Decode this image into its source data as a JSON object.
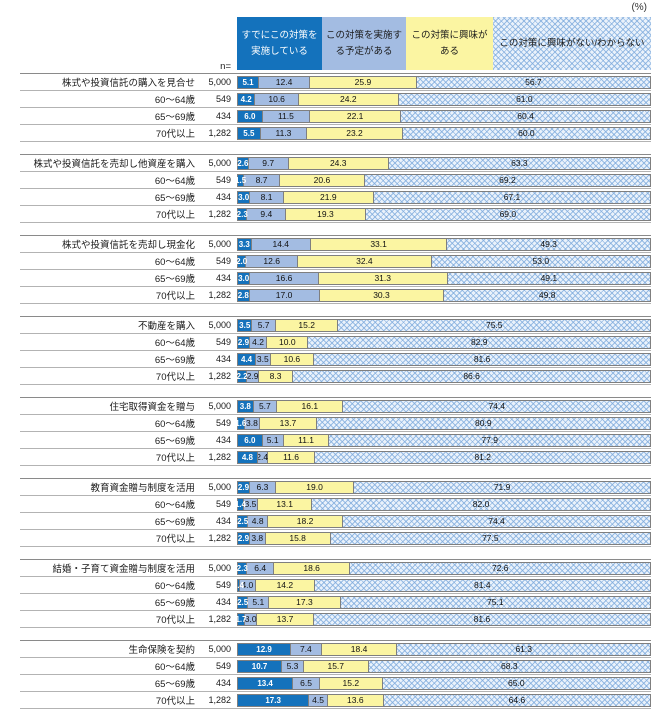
{
  "header": {
    "percent_label": "(%)",
    "n_label": "n="
  },
  "legend": [
    {
      "label": "すでにこの対策を実施している",
      "color": "#1472BC",
      "text_color": "#ffffff"
    },
    {
      "label": "この対策を実施する予定がある",
      "color": "#A3BCE2",
      "text_color": "#1a1a1a"
    },
    {
      "label": "この対策に興味がある",
      "color": "#FBF5A2",
      "text_color": "#1a1a1a"
    },
    {
      "label": "この対策に興味がない/わからない",
      "pattern": true,
      "color": "#EAF2FB",
      "text_color": "#1a1a1a"
    }
  ],
  "chart_data": {
    "type": "bar",
    "orientation": "horizontal-stacked",
    "unit": "%",
    "axis_range": [
      0,
      100
    ],
    "colors": {
      "implemented": "#1472BC",
      "planned": "#A3BCE2",
      "interested": "#FBF5A2",
      "not_interested_bg": "#EAF2FB"
    },
    "stack_order": [
      "すでにこの対策を実施している",
      "この対策を実施する予定がある",
      "この対策に興味がある",
      "この対策に興味がない/わからない"
    ],
    "blocks": [
      {
        "category": "株式や投資信託の購入を見合せ",
        "rows": [
          {
            "label": "",
            "n": "5,000",
            "values": [
              "5.1",
              "12.4",
              "25.9",
              "56.7"
            ]
          },
          {
            "label": "60～64歳",
            "n": "549",
            "values": [
              "4.2",
              "10.6",
              "24.2",
              "61.0"
            ]
          },
          {
            "label": "65～69歳",
            "n": "434",
            "values": [
              "6.0",
              "11.5",
              "22.1",
              "60.4"
            ]
          },
          {
            "label": "70代以上",
            "n": "1,282",
            "values": [
              "5.5",
              "11.3",
              "23.2",
              "60.0"
            ]
          }
        ]
      },
      {
        "category": "株式や投資信託を売却し他資産を購入",
        "rows": [
          {
            "label": "",
            "n": "5,000",
            "values": [
              "2.6",
              "9.7",
              "24.3",
              "63.3"
            ]
          },
          {
            "label": "60～64歳",
            "n": "549",
            "values": [
              "1.5",
              "8.7",
              "20.6",
              "69.2"
            ]
          },
          {
            "label": "65～69歳",
            "n": "434",
            "values": [
              "3.0",
              "8.1",
              "21.9",
              "67.1"
            ]
          },
          {
            "label": "70代以上",
            "n": "1,282",
            "values": [
              "2.3",
              "9.4",
              "19.3",
              "69.0"
            ]
          }
        ]
      },
      {
        "category": "株式や投資信託を売却し現金化",
        "rows": [
          {
            "label": "",
            "n": "5,000",
            "values": [
              "3.3",
              "14.4",
              "33.1",
              "49.3"
            ]
          },
          {
            "label": "60～64歳",
            "n": "549",
            "values": [
              "2.0",
              "12.6",
              "32.4",
              "53.0"
            ]
          },
          {
            "label": "65～69歳",
            "n": "434",
            "values": [
              "3.0",
              "16.6",
              "31.3",
              "49.1"
            ]
          },
          {
            "label": "70代以上",
            "n": "1,282",
            "values": [
              "2.8",
              "17.0",
              "30.3",
              "49.8"
            ]
          }
        ]
      },
      {
        "category": "不動産を購入",
        "rows": [
          {
            "label": "",
            "n": "5,000",
            "values": [
              "3.5",
              "5.7",
              "15.2",
              "75.5"
            ]
          },
          {
            "label": "60～64歳",
            "n": "549",
            "values": [
              "2.9",
              "4.2",
              "10.0",
              "82.9"
            ]
          },
          {
            "label": "65～69歳",
            "n": "434",
            "values": [
              "4.4",
              "3.5",
              "10.6",
              "81.6"
            ]
          },
          {
            "label": "70代以上",
            "n": "1,282",
            "values": [
              "2.2",
              "2.9",
              "8.3",
              "86.6"
            ]
          }
        ]
      },
      {
        "category": "住宅取得資金を贈与",
        "rows": [
          {
            "label": "",
            "n": "5,000",
            "values": [
              "3.8",
              "5.7",
              "16.1",
              "74.4"
            ]
          },
          {
            "label": "60～64歳",
            "n": "549",
            "values": [
              "1.6",
              "3.8",
              "13.7",
              "80.9"
            ]
          },
          {
            "label": "65～69歳",
            "n": "434",
            "values": [
              "6.0",
              "5.1",
              "11.1",
              "77.9"
            ]
          },
          {
            "label": "70代以上",
            "n": "1,282",
            "values": [
              "4.8",
              "2.4",
              "11.6",
              "81.2"
            ]
          }
        ]
      },
      {
        "category": "教育資金贈与制度を活用",
        "rows": [
          {
            "label": "",
            "n": "5,000",
            "values": [
              "2.9",
              "6.3",
              "19.0",
              "71.9"
            ]
          },
          {
            "label": "60～64歳",
            "n": "549",
            "values": [
              "1.4",
              "3.5",
              "13.1",
              "82.0"
            ]
          },
          {
            "label": "65～69歳",
            "n": "434",
            "values": [
              "2.5",
              "4.8",
              "18.2",
              "74.4"
            ]
          },
          {
            "label": "70代以上",
            "n": "1,282",
            "values": [
              "2.9",
              "3.8",
              "15.8",
              "77.5"
            ]
          }
        ]
      },
      {
        "category": "結婚・子育て資金贈与制度を活用",
        "rows": [
          {
            "label": "",
            "n": "5,000",
            "values": [
              "2.3",
              "6.4",
              "18.6",
              "72.6"
            ]
          },
          {
            "label": "60～64歳",
            "n": "549",
            "values": [
              "0.4",
              "4.0",
              "14.2",
              "81.4"
            ]
          },
          {
            "label": "65～69歳",
            "n": "434",
            "values": [
              "2.5",
              "5.1",
              "17.3",
              "75.1"
            ]
          },
          {
            "label": "70代以上",
            "n": "1,282",
            "values": [
              "1.7",
              "3.0",
              "13.7",
              "81.6"
            ]
          }
        ]
      },
      {
        "category": "生命保険を契約",
        "rows": [
          {
            "label": "",
            "n": "5,000",
            "values": [
              "12.9",
              "7.4",
              "18.4",
              "61.3"
            ]
          },
          {
            "label": "60～64歳",
            "n": "549",
            "values": [
              "10.7",
              "5.3",
              "15.7",
              "68.3"
            ]
          },
          {
            "label": "65～69歳",
            "n": "434",
            "values": [
              "13.4",
              "6.5",
              "15.2",
              "65.0"
            ]
          },
          {
            "label": "70代以上",
            "n": "1,282",
            "values": [
              "17.3",
              "4.5",
              "13.6",
              "64.6"
            ]
          }
        ]
      }
    ]
  }
}
